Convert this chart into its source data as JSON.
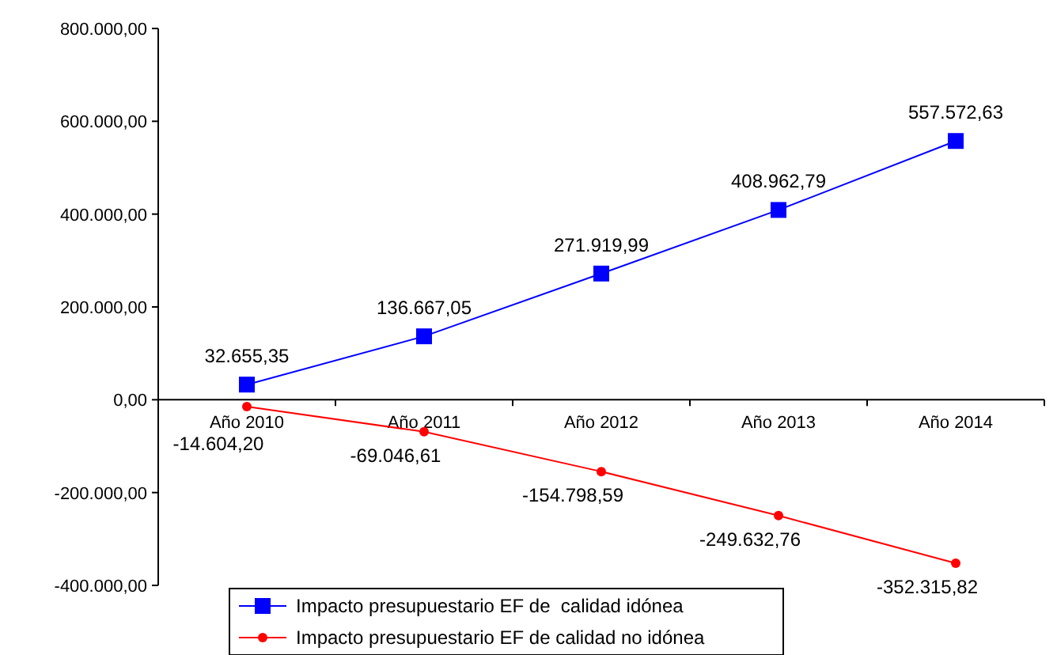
{
  "chart_data": {
    "type": "line",
    "categories": [
      "Año 2010",
      "Año 2011",
      "Año 2012",
      "Año 2013",
      "Año 2014"
    ],
    "series": [
      {
        "name": "Impacto presupuestario EF de  calidad idónea",
        "color": "#0000ff",
        "marker": "square",
        "values": [
          32655.35,
          136667.05,
          271919.99,
          408962.79,
          557572.63
        ],
        "value_labels": [
          "32.655,35",
          "136.667,05",
          "271.919,99",
          "408.962,79",
          "557.572,63"
        ]
      },
      {
        "name": "Impacto presupuestario EF de calidad no idónea",
        "color": "#ff0000",
        "marker": "circle",
        "values": [
          -14604.2,
          -69046.61,
          -154798.59,
          -249632.76,
          -352315.82
        ],
        "value_labels": [
          "-14.604,20",
          "-69.046,61",
          "-154.798,59",
          "-249.632,76",
          "-352.315,82"
        ]
      }
    ],
    "ylim": [
      -400000,
      800000
    ],
    "yticks": [
      {
        "value": -400000,
        "label": "-400.000,00"
      },
      {
        "value": -200000,
        "label": "-200.000,00"
      },
      {
        "value": 0,
        "label": "0,00"
      },
      {
        "value": 200000,
        "label": "200.000,00"
      },
      {
        "value": 400000,
        "label": "400.000,00"
      },
      {
        "value": 600000,
        "label": "600.000,00"
      },
      {
        "value": 800000,
        "label": "800.000,00"
      }
    ],
    "grid": false,
    "legend": "bottom",
    "line_style": "solid"
  }
}
